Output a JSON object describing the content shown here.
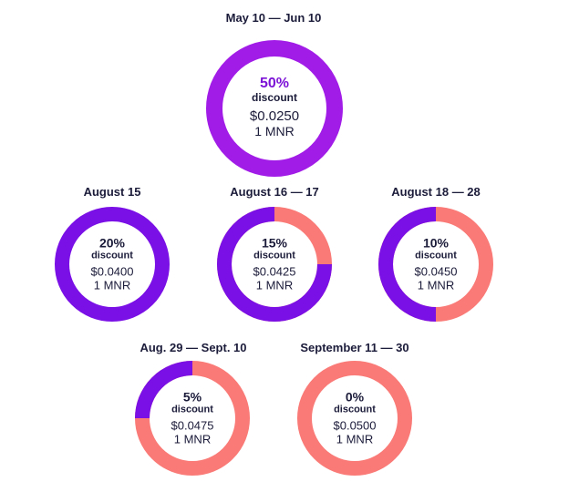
{
  "colors": {
    "purple": "#7a0fe6",
    "purple_top": "#8a14ea",
    "purple_big": "#a21ce8",
    "coral": "#f97a76",
    "text": "#1b1b3a",
    "accent_text": "#7b12d6"
  },
  "chart_data": {
    "type": "pie",
    "title": "",
    "stages": [
      {
        "period": "May 10 — Jun 10",
        "discount": 50,
        "discount_label": "50%",
        "label": "discount",
        "price": "$0.0250",
        "unit": "1 MNR"
      },
      {
        "period": "August 15",
        "discount": 20,
        "discount_label": "20%",
        "label": "discount",
        "price": "$0.0400",
        "unit": "1 MNR"
      },
      {
        "period": "August 16 — 17",
        "discount": 15,
        "discount_label": "15%",
        "label": "discount",
        "price": "$0.0425",
        "unit": "1 MNR"
      },
      {
        "period": "August 18 — 28",
        "discount": 10,
        "discount_label": "10%",
        "label": "discount",
        "price": "$0.0450",
        "unit": "1 MNR"
      },
      {
        "period": "Aug. 29 — Sept. 10",
        "discount": 5,
        "discount_label": "5%",
        "label": "discount",
        "price": "$0.0475",
        "unit": "1 MNR"
      },
      {
        "period": "September 11 — 30",
        "discount": 0,
        "discount_label": "0%",
        "label": "discount",
        "price": "$0.0500",
        "unit": "1 MNR"
      }
    ]
  }
}
